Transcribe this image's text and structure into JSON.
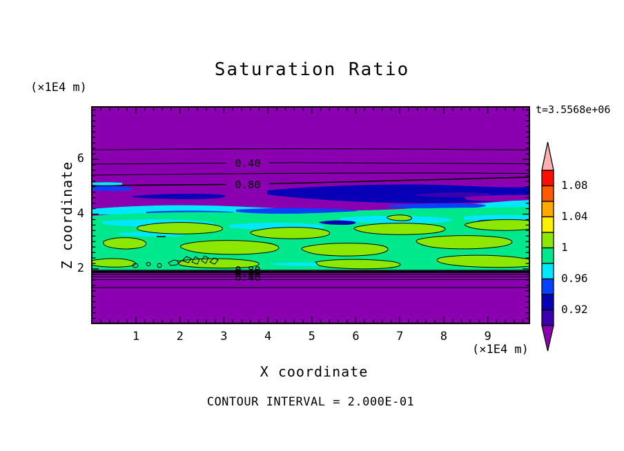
{
  "chart_data": {
    "type": "heatmap",
    "title": "Saturation Ratio",
    "time_label": "t=3.5568e+06",
    "xlabel": "X coordinate",
    "ylabel": "Z coordinate",
    "x_unit_label": "(×1E4 m)",
    "y_unit_label": "(×1E4 m)",
    "footnote": "CONTOUR INTERVAL = 2.000E-01",
    "contour_interval": 0.2,
    "x_ticks": [
      1,
      2,
      3,
      4,
      5,
      6,
      7,
      8,
      9
    ],
    "y_ticks": [
      2,
      4,
      6
    ],
    "x_range_x1E4_m": [
      0,
      10
    ],
    "z_range_x1E4_m": [
      0,
      8
    ],
    "grid": false,
    "upper_contour_labels": [
      {
        "value": "0.40",
        "z_approx": 5.9
      },
      {
        "value": "0.80",
        "z_approx": 5.1
      }
    ],
    "lower_contour_labels": [
      {
        "value": "0.80",
        "z_approx": 2.0
      },
      {
        "value": "0.60",
        "z_approx": 1.95
      },
      {
        "value": "0.40",
        "z_approx": 1.85
      }
    ],
    "palette": {
      "purple": "#8A00B0",
      "indigo": "#3A00B0",
      "navy": "#0800B6",
      "blue": "#0840FF",
      "cyan": "#00E8FF",
      "spring_green": "#00E88C",
      "chartreuse": "#8CE800",
      "yellow": "#FFF200",
      "orange": "#FFA800",
      "orange_red": "#FF5A00",
      "red": "#FF0D00",
      "pink": "#FFB0B0"
    },
    "colorbar": {
      "position": "right",
      "tick_labels": [
        "1.08",
        "1.04",
        "1",
        "0.96",
        "0.92"
      ],
      "over_arrow_color": "#FFB0B0",
      "under_arrow_color": "#8A00B0",
      "cells_top_to_bottom": [
        {
          "color": "#FF0D00",
          "range": [
            1.08,
            1.1
          ]
        },
        {
          "color": "#FF5A00",
          "range": [
            1.06,
            1.08
          ]
        },
        {
          "color": "#FFA800",
          "range": [
            1.04,
            1.06
          ]
        },
        {
          "color": "#FFF200",
          "range": [
            1.02,
            1.04
          ]
        },
        {
          "color": "#8CE800",
          "range": [
            1.0,
            1.02
          ]
        },
        {
          "color": "#00E88C",
          "range": [
            0.98,
            1.0
          ]
        },
        {
          "color": "#00E8FF",
          "range": [
            0.96,
            0.98
          ]
        },
        {
          "color": "#0840FF",
          "range": [
            0.94,
            0.96
          ]
        },
        {
          "color": "#0800B6",
          "range": [
            0.92,
            0.94
          ]
        },
        {
          "color": "#3A00B0",
          "range": [
            0.9,
            0.92
          ]
        }
      ]
    },
    "field_bands_top_to_bottom": [
      {
        "z_approx": "5.3 – 8.0",
        "appearance": "uniform purple (ratio < 0.9) with contour lines 0.40 and 0.80 near z≈5.9 and z≈5.1"
      },
      {
        "z_approx": "4.4 – 5.3",
        "appearance": "dark blue / blue / cyan streaked band (ratio 0.92 – 0.98)"
      },
      {
        "z_approx": "2.1 – 4.4",
        "appearance": "green band (≈0.98 – 1.0) with yellow-green patches (1.0 – 1.02) outlined by black contours, cyan streaks"
      },
      {
        "z_approx": "0 – 2.1",
        "appearance": "uniform purple; stacked contour lines labeled 0.80 / 0.60 / 0.40 just below z≈2"
      }
    ]
  }
}
